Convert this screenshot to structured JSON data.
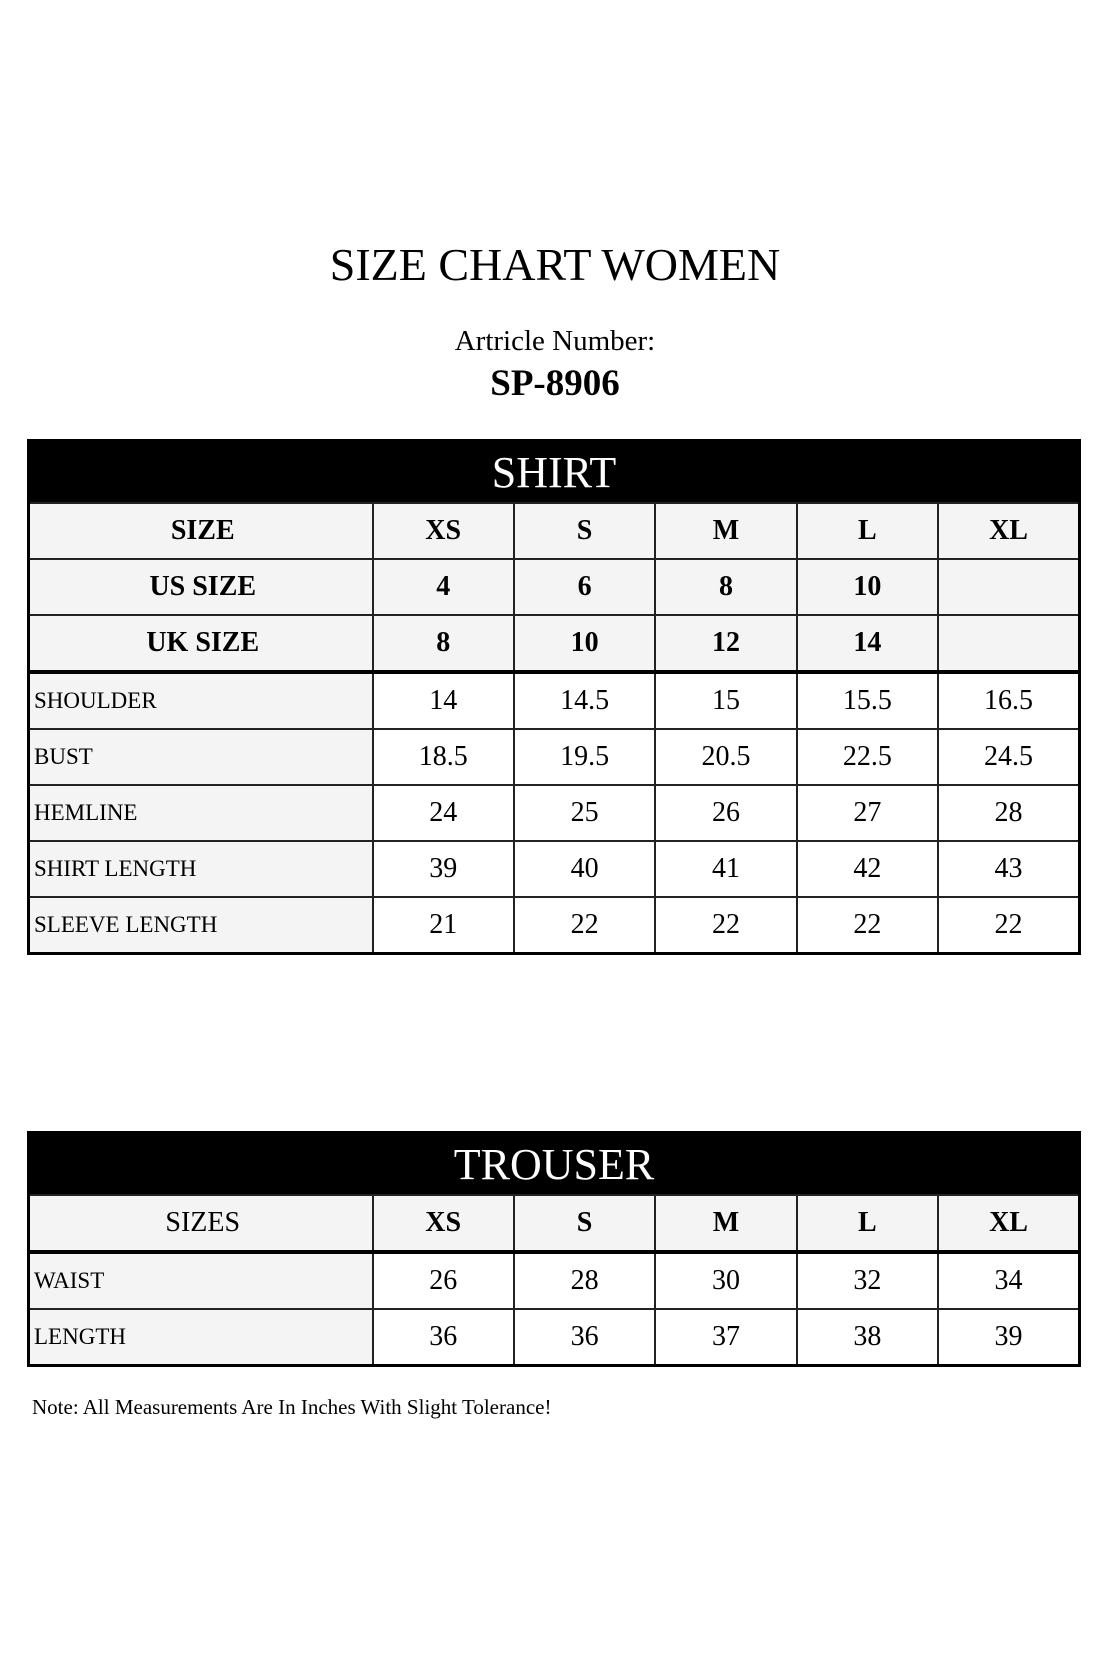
{
  "title": "SIZE CHART WOMEN",
  "article": {
    "label": "Artricle Number:",
    "number": "SP-8906"
  },
  "shirt": {
    "heading": "SHIRT",
    "header_rows": [
      {
        "label": "SIZE",
        "values": [
          "XS",
          "S",
          "M",
          "L",
          "XL"
        ]
      },
      {
        "label": "US SIZE",
        "values": [
          "4",
          "6",
          "8",
          "10",
          ""
        ]
      },
      {
        "label": "UK SIZE",
        "values": [
          "8",
          "10",
          "12",
          "14",
          ""
        ]
      }
    ],
    "rows": [
      {
        "label": "SHOULDER",
        "values": [
          "14",
          "14.5",
          "15",
          "15.5",
          "16.5"
        ]
      },
      {
        "label": "BUST",
        "values": [
          "18.5",
          "19.5",
          "20.5",
          "22.5",
          "24.5"
        ]
      },
      {
        "label": "HEMLINE",
        "values": [
          "24",
          "25",
          "26",
          "27",
          "28"
        ]
      },
      {
        "label": "SHIRT LENGTH",
        "values": [
          "39",
          "40",
          "41",
          "42",
          "43"
        ]
      },
      {
        "label": "SLEEVE LENGTH",
        "values": [
          "21",
          "22",
          "22",
          "22",
          "22"
        ]
      }
    ]
  },
  "trouser": {
    "heading": "TROUSER",
    "header": {
      "label": "SIZES",
      "values": [
        "XS",
        "S",
        "M",
        "L",
        "XL"
      ]
    },
    "rows": [
      {
        "label": "WAIST",
        "values": [
          "26",
          "28",
          "30",
          "32",
          "34"
        ]
      },
      {
        "label": "LENGTH",
        "values": [
          "36",
          "36",
          "37",
          "38",
          "39"
        ]
      }
    ]
  },
  "note": "Note: All Measurements Are In Inches With Slight Tolerance!"
}
